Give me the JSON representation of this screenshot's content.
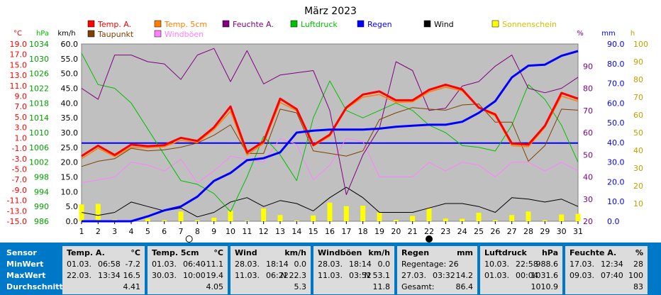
{
  "title": "März 2023",
  "colors": {
    "temp": "#ff0000",
    "temp5": "#ff8000",
    "feuchte": "#800080",
    "dew": "#804000",
    "gust": "#ff80ff",
    "pressure": "#00c000",
    "rain": "#0000ff",
    "wind": "#000000",
    "sun": "#ffff00"
  },
  "legend": [
    {
      "label": "Temp. A.",
      "color": "#ff0000"
    },
    {
      "label": "Temp. 5cm",
      "color": "#ff8000"
    },
    {
      "label": "Feuchte A.",
      "color": "#800080"
    },
    {
      "label": "Luftdruck",
      "color": "#00c000"
    },
    {
      "label": "Regen",
      "color": "#0000ff"
    },
    {
      "label": "Wind",
      "color": "#000000"
    },
    {
      "label": "Sonnenschein",
      "color": "#ffff00"
    },
    {
      "label": "Taupunkt",
      "color": "#804000"
    },
    {
      "label": "Windböen",
      "color": "#ff80ff"
    }
  ],
  "axis_units": {
    "temp": "°C",
    "pressure": "hPa",
    "wind": "km/h",
    "humidity": "%",
    "rain": "mm",
    "sun": "h"
  },
  "chart_data": {
    "type": "line",
    "title": "März 2023",
    "x": [
      1,
      2,
      3,
      4,
      5,
      6,
      7,
      8,
      9,
      10,
      11,
      12,
      13,
      14,
      15,
      16,
      17,
      18,
      19,
      20,
      21,
      22,
      23,
      24,
      25,
      26,
      27,
      28,
      29,
      30,
      31
    ],
    "axes": {
      "temp_c": {
        "range": [
          -15,
          19
        ],
        "ticks": [
          "19.0",
          "17.0",
          "15.0",
          "13.0",
          "11.0",
          "9.0",
          "7.0",
          "5.0",
          "3.0",
          "1.0",
          "-1.0",
          "-3.0",
          "-5.0",
          "-7.0",
          "-9.0",
          "-11.0",
          "-13.0",
          "-15.0"
        ]
      },
      "pressure_hpa": {
        "range": [
          986,
          1034
        ],
        "ticks": [
          "1034",
          "1030",
          "1026",
          "1022",
          "1018",
          "1014",
          "1010",
          "1006",
          "1002",
          "998",
          "994",
          "990",
          "986"
        ]
      },
      "wind_kmh": {
        "range": [
          0,
          60
        ],
        "ticks": [
          "60.0",
          "55.0",
          "50.0",
          "45.0",
          "40.0",
          "35.0",
          "30.0",
          "25.0",
          "20.0",
          "15.0",
          "10.0",
          "5.0",
          "0.0"
        ]
      },
      "humidity_pct": {
        "range": [
          20,
          100
        ],
        "ticks": [
          "90",
          "80",
          "70",
          "60",
          "50",
          "40",
          "30",
          "20"
        ]
      },
      "rain_mm": {
        "range": [
          0,
          90
        ],
        "ticks": [
          "90.0",
          "80.0",
          "70.0",
          "60.0",
          "50.0",
          "40.0",
          "30.0",
          "20.0",
          "10.0",
          "0.0"
        ]
      },
      "sun_h": {
        "range": [
          0,
          100
        ],
        "ticks": [
          "100",
          "90",
          "80",
          "70",
          "60",
          "50",
          "40",
          "30",
          "20",
          "10"
        ]
      }
    },
    "series": [
      {
        "name": "Temp. A.",
        "unit": "°C",
        "values": [
          -2.5,
          -0.5,
          -2.3,
          -0.3,
          -0.6,
          -0.4,
          1.0,
          0.4,
          3.0,
          7.0,
          -1.8,
          0.3,
          8.5,
          6.5,
          -0.4,
          1.6,
          6.8,
          9.3,
          9.9,
          8.2,
          8.2,
          10.2,
          11.2,
          10.3,
          6.8,
          5.5,
          -0.1,
          -0.3,
          3.3,
          9.6,
          8.5
        ]
      },
      {
        "name": "Temp. 5cm",
        "unit": "°C",
        "values": [
          -3.0,
          -1.0,
          -2.6,
          -0.8,
          -0.9,
          -0.7,
          0.5,
          0.1,
          2.6,
          6.1,
          -2.3,
          -0.1,
          7.8,
          6.2,
          -0.6,
          1.3,
          6.6,
          8.8,
          9.3,
          7.8,
          7.9,
          9.8,
          10.7,
          10.0,
          6.7,
          5.2,
          -0.5,
          -0.7,
          3.0,
          9.0,
          8.0
        ]
      },
      {
        "name": "Taupunkt",
        "unit": "°C",
        "values": [
          -4.5,
          -3.5,
          -3.0,
          -1.0,
          -1.5,
          -1.3,
          -0.8,
          0.0,
          1.5,
          3.5,
          -2.0,
          -2.0,
          6.5,
          5.8,
          -1.5,
          -2.0,
          -2.5,
          -1.5,
          4.5,
          5.8,
          6.8,
          6.5,
          6.3,
          7.3,
          7.5,
          4.0,
          4.0,
          -3.5,
          -0.5,
          6.5,
          6.3
        ]
      },
      {
        "name": "Feuchte A.",
        "unit": "%",
        "values": [
          80,
          75,
          95,
          95,
          92,
          91,
          84,
          95,
          98,
          83,
          97,
          82,
          86,
          87,
          88,
          70,
          32,
          50,
          62,
          92,
          88,
          70,
          71,
          81,
          83,
          90,
          95,
          80,
          78,
          80,
          85
        ]
      },
      {
        "name": "Luftdruck",
        "unit": "hPa",
        "values": [
          1031.5,
          1023,
          1022,
          1018,
          1011,
          1004,
          997,
          996,
          993.5,
          988.6,
          998,
          1009,
          1004,
          997,
          1014,
          1024,
          1016,
          1014,
          1016,
          1018,
          1016,
          1012,
          1010,
          1006.5,
          1006,
          1005,
          1012,
          1023,
          1019,
          1012,
          1002
        ]
      },
      {
        "name": "Regen",
        "unit": "mm",
        "values": [
          0,
          0,
          0,
          0,
          2.5,
          5.5,
          7.5,
          12.5,
          20.5,
          24.5,
          31,
          32,
          35,
          45,
          46,
          46.5,
          46.5,
          46.5,
          47,
          48,
          48.5,
          49,
          49,
          50.5,
          55,
          61,
          73,
          79,
          79.5,
          84,
          86.4
        ]
      },
      {
        "name": "Wind",
        "unit": "km/h",
        "values": [
          3.0,
          2.0,
          3.0,
          6.5,
          5.0,
          3.5,
          4.5,
          1.5,
          3.0,
          6.5,
          8.0,
          5.0,
          7.0,
          6.0,
          3.5,
          8.0,
          11.5,
          8.0,
          3.0,
          3.0,
          3.0,
          4.5,
          6.0,
          6.0,
          5.0,
          3.0,
          8.0,
          7.5,
          6.5,
          7.5,
          5.0
        ]
      },
      {
        "name": "Windböen",
        "unit": "km/h",
        "values": [
          13,
          14,
          15,
          20,
          19,
          17,
          21,
          13,
          17,
          22,
          21,
          20,
          28,
          26,
          14,
          19,
          28,
          27,
          15,
          15,
          15,
          20,
          17,
          20,
          19,
          15,
          20,
          20,
          17,
          20,
          17
        ]
      },
      {
        "name": "Sonnenschein",
        "unit": "h",
        "values": [
          9.5,
          9.8,
          1,
          0.5,
          1.5,
          0.5,
          5.5,
          0.5,
          2,
          6,
          0.2,
          7.2,
          3.5,
          0.3,
          3.3,
          10.5,
          8.5,
          8.8,
          5,
          0.8,
          3,
          7.3,
          1.5,
          1.4,
          4.8,
          0.6,
          3.5,
          5.5,
          0.5,
          3.8,
          4.2
        ]
      }
    ],
    "reference_line": {
      "unit": "°C",
      "value": 0
    },
    "moon_markers": [
      {
        "day": 7.5,
        "phase": "full"
      },
      {
        "day": 22,
        "phase": "new"
      }
    ]
  },
  "table": {
    "labels": [
      "Sensor",
      "MinWert",
      "MaxWert",
      "Durchschnitt"
    ],
    "columns": [
      {
        "title": "Temp. A.",
        "unit": "°C",
        "rows": [
          [
            "01.03.",
            "06:58",
            "-7.2"
          ],
          [
            "22.03.",
            "13:34",
            "16.5"
          ],
          [
            "",
            "",
            "4.41"
          ]
        ]
      },
      {
        "title": "Temp. 5cm",
        "unit": "°C",
        "rows": [
          [
            "01.03.",
            "06:40",
            "-11.1"
          ],
          [
            "30.03.",
            "10:00",
            "19.4"
          ],
          [
            "",
            "",
            "4.05"
          ]
        ]
      },
      {
        "title": "Wind",
        "unit": "km/h",
        "rows": [
          [
            "28.03.",
            "18:14",
            "0.0"
          ],
          [
            "11.03.",
            "06:22",
            "N 22.3"
          ],
          [
            "",
            "",
            "5.3"
          ]
        ]
      },
      {
        "title": "Windböen",
        "unit": "km/h",
        "rows": [
          [
            "28.03.",
            "18:14",
            "0.0"
          ],
          [
            "11.03.",
            "03:52",
            "N 53.1"
          ],
          [
            "",
            "",
            "11.8"
          ]
        ]
      },
      {
        "title": "Regen",
        "unit": "mm",
        "rows": [
          [
            "Regentage: 26",
            "",
            ""
          ],
          [
            "27.03.",
            "03:32",
            "14.2"
          ],
          [
            "Gesamt:",
            "",
            "86.4"
          ]
        ]
      },
      {
        "title": "Luftdruck",
        "unit": "hPa",
        "rows": [
          [
            "10.03.",
            "22:58",
            "988.6"
          ],
          [
            "01.03.",
            "00:04",
            "1031.6"
          ],
          [
            "",
            "",
            "1010.9"
          ]
        ]
      },
      {
        "title": "Feuchte A.",
        "unit": "%",
        "rows": [
          [
            "17.03.",
            "12:34",
            "28"
          ],
          [
            "09.03.",
            "07:40",
            "100"
          ],
          [
            "",
            "",
            "83"
          ]
        ]
      }
    ]
  }
}
